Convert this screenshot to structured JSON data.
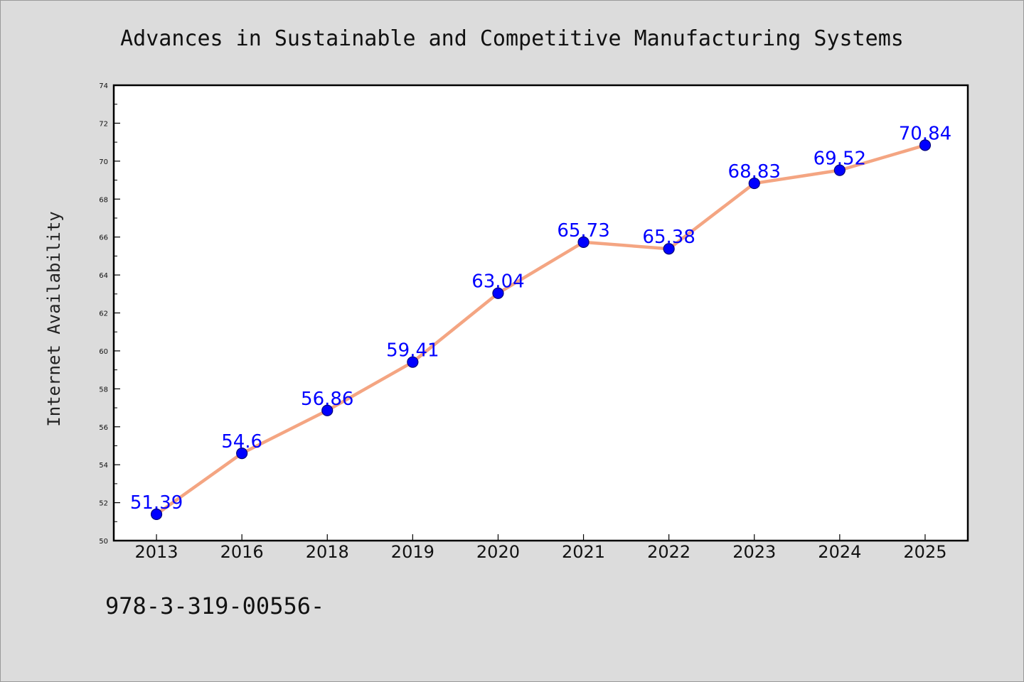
{
  "chart_data": {
    "type": "line",
    "title": "Advances in Sustainable and Competitive Manufacturing Systems",
    "ylabel": "Internet Availability",
    "xlabel": "",
    "categories": [
      "2013",
      "2016",
      "2018",
      "2019",
      "2020",
      "2021",
      "2022",
      "2023",
      "2024",
      "2025"
    ],
    "series": [
      {
        "values": [
          51.39,
          54.6,
          56.86,
          59.41,
          63.04,
          65.73,
          65.38,
          68.83,
          69.52,
          70.84
        ],
        "labels": [
          "51.39",
          "54.6",
          "56.86",
          "59.41",
          "63.04",
          "65.73",
          "65.38",
          "68.83",
          "69.52",
          "70.84"
        ]
      }
    ],
    "ylim": [
      50,
      74
    ],
    "yticks": [
      "50",
      "52",
      "54",
      "56",
      "58",
      "60",
      "62",
      "64",
      "66",
      "68",
      "70",
      "72",
      "74"
    ],
    "grid": false,
    "legend": "none",
    "footer": "978-3-319-00556-",
    "colors": {
      "background": "#dcdcdc",
      "plot_background": "#ffffff",
      "line": "#f4a582",
      "marker": "#0000ff",
      "marker_edge": "#00007a",
      "data_label": "#0000ff"
    }
  }
}
